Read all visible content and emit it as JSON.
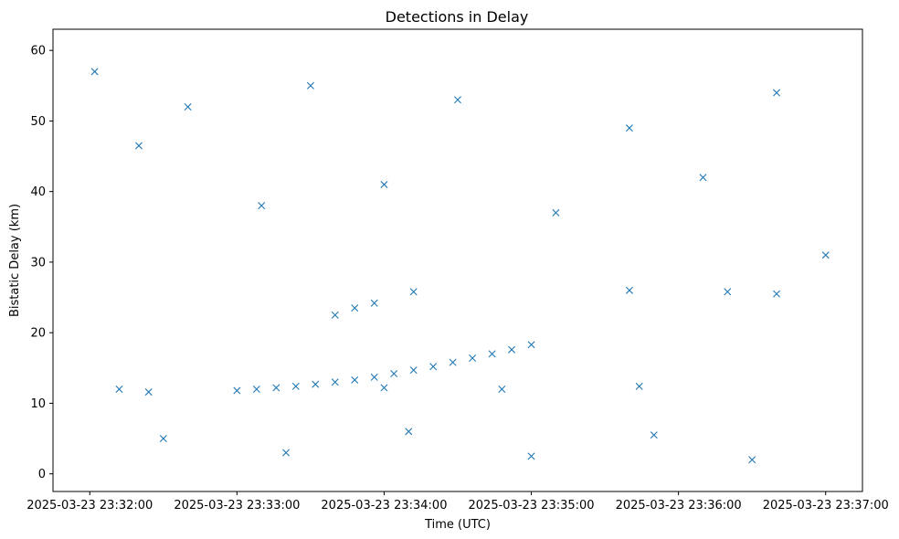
{
  "chart_data": {
    "type": "scatter",
    "title": "Detections in Delay",
    "xlabel": "Time (UTC)",
    "ylabel": "Bistatic Delay (km)",
    "marker": "x",
    "color": "#1f77b4",
    "grid": false,
    "x_unit": "time",
    "xlim": [
      "2025-03-23 23:31:45",
      "2025-03-23 23:37:15"
    ],
    "ylim": [
      -2.5,
      63
    ],
    "x_ticks": [
      "2025-03-23 23:32:00",
      "2025-03-23 23:33:00",
      "2025-03-23 23:34:00",
      "2025-03-23 23:35:00",
      "2025-03-23 23:36:00",
      "2025-03-23 23:37:00"
    ],
    "y_ticks": [
      0,
      10,
      20,
      30,
      40,
      50,
      60
    ],
    "series": [
      {
        "name": "",
        "points": [
          [
            "2025-03-23 23:33:00",
            11.8
          ],
          [
            "2025-03-23 23:33:08",
            12.0
          ],
          [
            "2025-03-23 23:33:16",
            12.2
          ],
          [
            "2025-03-23 23:33:24",
            12.4
          ],
          [
            "2025-03-23 23:33:32",
            12.7
          ],
          [
            "2025-03-23 23:33:40",
            13.0
          ],
          [
            "2025-03-23 23:33:48",
            13.3
          ],
          [
            "2025-03-23 23:33:56",
            13.7
          ],
          [
            "2025-03-23 23:34:04",
            14.2
          ],
          [
            "2025-03-23 23:34:12",
            14.7
          ],
          [
            "2025-03-23 23:34:20",
            15.2
          ],
          [
            "2025-03-23 23:34:28",
            15.8
          ],
          [
            "2025-03-23 23:34:36",
            16.4
          ],
          [
            "2025-03-23 23:34:44",
            17.0
          ],
          [
            "2025-03-23 23:34:52",
            17.6
          ],
          [
            "2025-03-23 23:35:00",
            18.3
          ],
          [
            "2025-03-23 23:33:40",
            22.5
          ],
          [
            "2025-03-23 23:33:48",
            23.5
          ],
          [
            "2025-03-23 23:33:56",
            24.2
          ],
          [
            "2025-03-23 23:34:12",
            25.8
          ],
          [
            "2025-03-23 23:35:40",
            26.0
          ],
          [
            "2025-03-23 23:36:20",
            25.8
          ],
          [
            "2025-03-23 23:36:40",
            25.5
          ],
          [
            "2025-03-23 23:35:44",
            12.4
          ],
          [
            "2025-03-23 23:32:12",
            12.0
          ],
          [
            "2025-03-23 23:32:24",
            11.6
          ],
          [
            "2025-03-23 23:34:48",
            12.0
          ],
          [
            "2025-03-23 23:34:00",
            12.2
          ],
          [
            "2025-03-23 23:32:02",
            57.0
          ],
          [
            "2025-03-23 23:32:20",
            46.5
          ],
          [
            "2025-03-23 23:32:40",
            52.0
          ],
          [
            "2025-03-23 23:33:10",
            38.0
          ],
          [
            "2025-03-23 23:33:30",
            55.0
          ],
          [
            "2025-03-23 23:34:00",
            41.0
          ],
          [
            "2025-03-23 23:34:30",
            53.0
          ],
          [
            "2025-03-23 23:35:10",
            37.0
          ],
          [
            "2025-03-23 23:35:40",
            49.0
          ],
          [
            "2025-03-23 23:36:10",
            42.0
          ],
          [
            "2025-03-23 23:36:40",
            54.0
          ],
          [
            "2025-03-23 23:37:00",
            31.0
          ],
          [
            "2025-03-23 23:32:30",
            5.0
          ],
          [
            "2025-03-23 23:33:20",
            3.0
          ],
          [
            "2025-03-23 23:34:10",
            6.0
          ],
          [
            "2025-03-23 23:35:00",
            2.5
          ],
          [
            "2025-03-23 23:35:50",
            5.5
          ],
          [
            "2025-03-23 23:36:30",
            2.0
          ]
        ]
      }
    ]
  }
}
